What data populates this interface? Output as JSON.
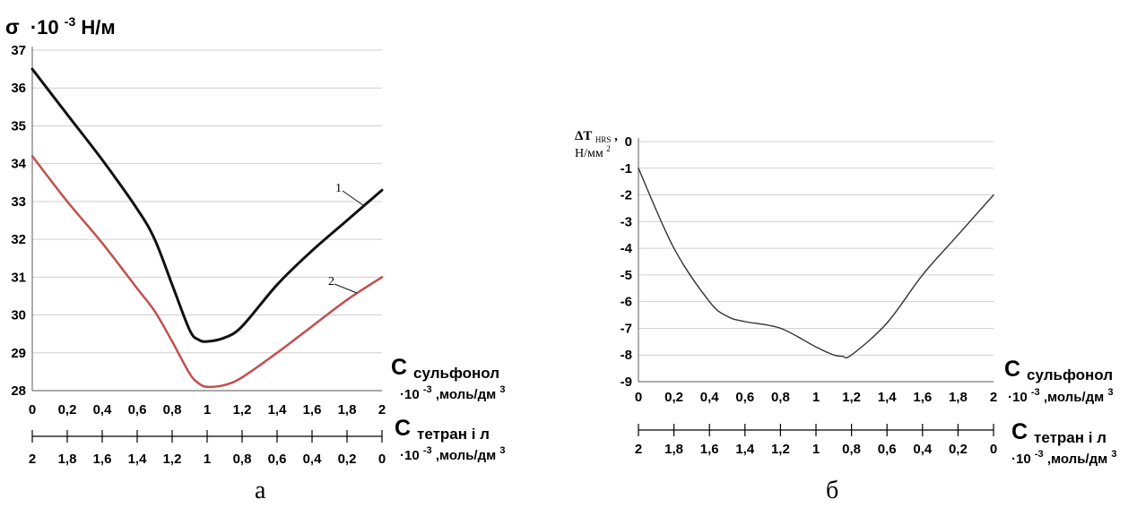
{
  "chart_data": [
    {
      "panel": "а",
      "type": "line",
      "ylabel_symbol": "σ",
      "ylabel_factor": "·10",
      "ylabel_exp": "-3",
      "ylabel_unit": "Н/м",
      "ylim": [
        28,
        37
      ],
      "yticks": [
        "28",
        "29",
        "30",
        "31",
        "32",
        "33",
        "34",
        "35",
        "36",
        "37"
      ],
      "grid": true,
      "x": [
        0,
        0.2,
        0.4,
        0.6,
        0.7,
        0.8,
        0.9,
        0.95,
        1.0,
        1.1,
        1.2,
        1.4,
        1.6,
        1.8,
        2.0
      ],
      "xticks": [
        "0",
        "0,2",
        "0,4",
        "0,6",
        "0,8",
        "1",
        "1,2",
        "1,4",
        "1,6",
        "1,8",
        "2"
      ],
      "x2ticks": [
        "2",
        "1,8",
        "1,6",
        "1,4",
        "1,2",
        "1",
        "0,8",
        "0,6",
        "0,4",
        "0,2",
        "0"
      ],
      "xaxis1_label": "C",
      "xaxis1_sub": "сульфонол",
      "xaxis1_units_pre": "·10",
      "xaxis1_units_exp": "-3",
      "xaxis1_units_mid": ",моль/дм",
      "xaxis1_units_exp2": "3",
      "xaxis2_label": "C",
      "xaxis2_sub": "тетран і л",
      "xaxis2_units_pre": "·10",
      "xaxis2_units_exp": "-3",
      "xaxis2_units_mid": ",моль/дм",
      "xaxis2_units_exp2": "3",
      "series": [
        {
          "name": "1",
          "color": "#111111",
          "values": [
            36.5,
            35.3,
            34.1,
            32.8,
            32.0,
            30.8,
            29.6,
            29.35,
            29.3,
            29.4,
            29.7,
            30.8,
            31.7,
            32.5,
            33.3
          ]
        },
        {
          "name": "2",
          "color": "#c0504d",
          "values": [
            34.2,
            33.0,
            31.9,
            30.7,
            30.1,
            29.3,
            28.45,
            28.2,
            28.1,
            28.15,
            28.35,
            29.0,
            29.7,
            30.4,
            31.0
          ]
        }
      ]
    },
    {
      "panel": "б",
      "type": "line",
      "ylabel_main": "ΔT",
      "ylabel_sub": "HRS",
      "ylabel_tail": ",",
      "ylabel_unit": "Н/мм",
      "ylabel_unit_exp": "2",
      "ylim": [
        -9,
        0
      ],
      "yticks": [
        "-9",
        "-8",
        "-7",
        "-6",
        "-5",
        "-4",
        "-3",
        "-2",
        "-1",
        "0"
      ],
      "grid": true,
      "x": [
        0,
        0.2,
        0.4,
        0.5,
        0.6,
        0.8,
        1.0,
        1.1,
        1.15,
        1.2,
        1.4,
        1.6,
        1.8,
        2.0
      ],
      "xticks": [
        "0",
        "0,2",
        "0,4",
        "0,6",
        "0,8",
        "1",
        "1,2",
        "1,4",
        "1,6",
        "1,8",
        "2"
      ],
      "x2ticks": [
        "2",
        "1,8",
        "1,6",
        "1,4",
        "1,2",
        "1",
        "0,8",
        "0,6",
        "0,4",
        "0,2",
        "0"
      ],
      "xaxis1_label": "C",
      "xaxis1_sub": "сульфонол",
      "xaxis1_units_pre": "·10",
      "xaxis1_units_exp": "-3",
      "xaxis1_units_mid": ",моль/дм",
      "xaxis1_units_exp2": "3",
      "xaxis2_label": "C",
      "xaxis2_sub": "тетран і л",
      "xaxis2_units_pre": "·10",
      "xaxis2_units_exp": "-3",
      "xaxis2_units_mid": ",моль/дм",
      "xaxis2_units_exp2": "3",
      "series": [
        {
          "name": "",
          "color": "#333333",
          "values": [
            -1.0,
            -4.0,
            -6.0,
            -6.55,
            -6.75,
            -7.0,
            -7.7,
            -8.0,
            -8.05,
            -8.0,
            -6.8,
            -5.0,
            -3.5,
            -2.0
          ]
        }
      ]
    }
  ],
  "panel_labels": {
    "a": "а",
    "b": "б"
  }
}
